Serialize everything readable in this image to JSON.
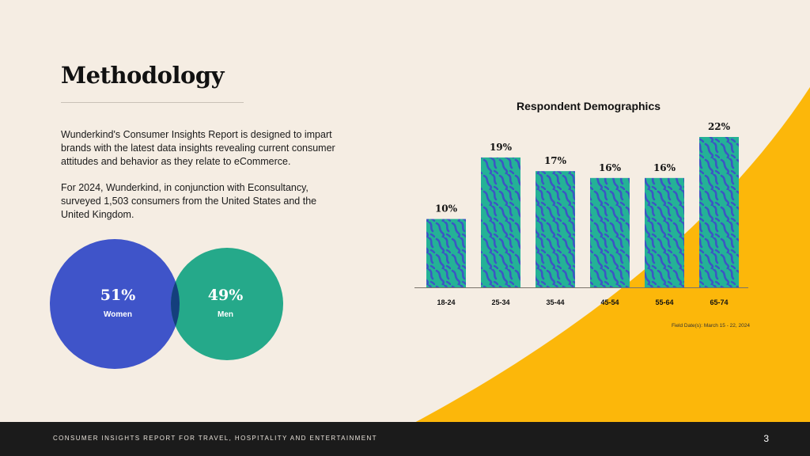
{
  "page": {
    "title": "Methodology",
    "paragraphs": [
      "Wunderkind's Consumer Insights Report is designed to impart brands with the latest data insights revealing current consumer attitudes and behavior as they relate to eCommerce.",
      "For 2024, Wunderkind, in conjunction with Econsultancy, surveyed 1,503 consumers from the United States and the United Kingdom."
    ]
  },
  "venn": {
    "women": {
      "value": "51%",
      "label": "Women"
    },
    "men": {
      "value": "49%",
      "label": "Men"
    }
  },
  "chart_data": {
    "type": "bar",
    "title": "Respondent Demographics",
    "categories": [
      "18-24",
      "25-34",
      "35-44",
      "45-54",
      "55-64",
      "65-74"
    ],
    "values": [
      10,
      19,
      17,
      16,
      16,
      22
    ],
    "value_labels": [
      "10%",
      "19%",
      "17%",
      "16%",
      "16%",
      "22%"
    ],
    "xlabel": "",
    "ylabel": "",
    "ylim": [
      0,
      22
    ],
    "grid": false,
    "note": "Field Date(s): March 15 - 22, 2024"
  },
  "colors": {
    "background": "#f5ede3",
    "accent_yellow": "#fcb70a",
    "venn_blue": "#3f54c9",
    "venn_green": "#25a98a",
    "venn_overlap": "#143f7d",
    "bar_teal": "#24b296",
    "bar_pattern": "#3c56c4",
    "footer": "#1b1b1b"
  },
  "footer": {
    "text": "CONSUMER INSIGHTS REPORT FOR TRAVEL, HOSPITALITY AND ENTERTAINMENT",
    "page_number": "3"
  }
}
